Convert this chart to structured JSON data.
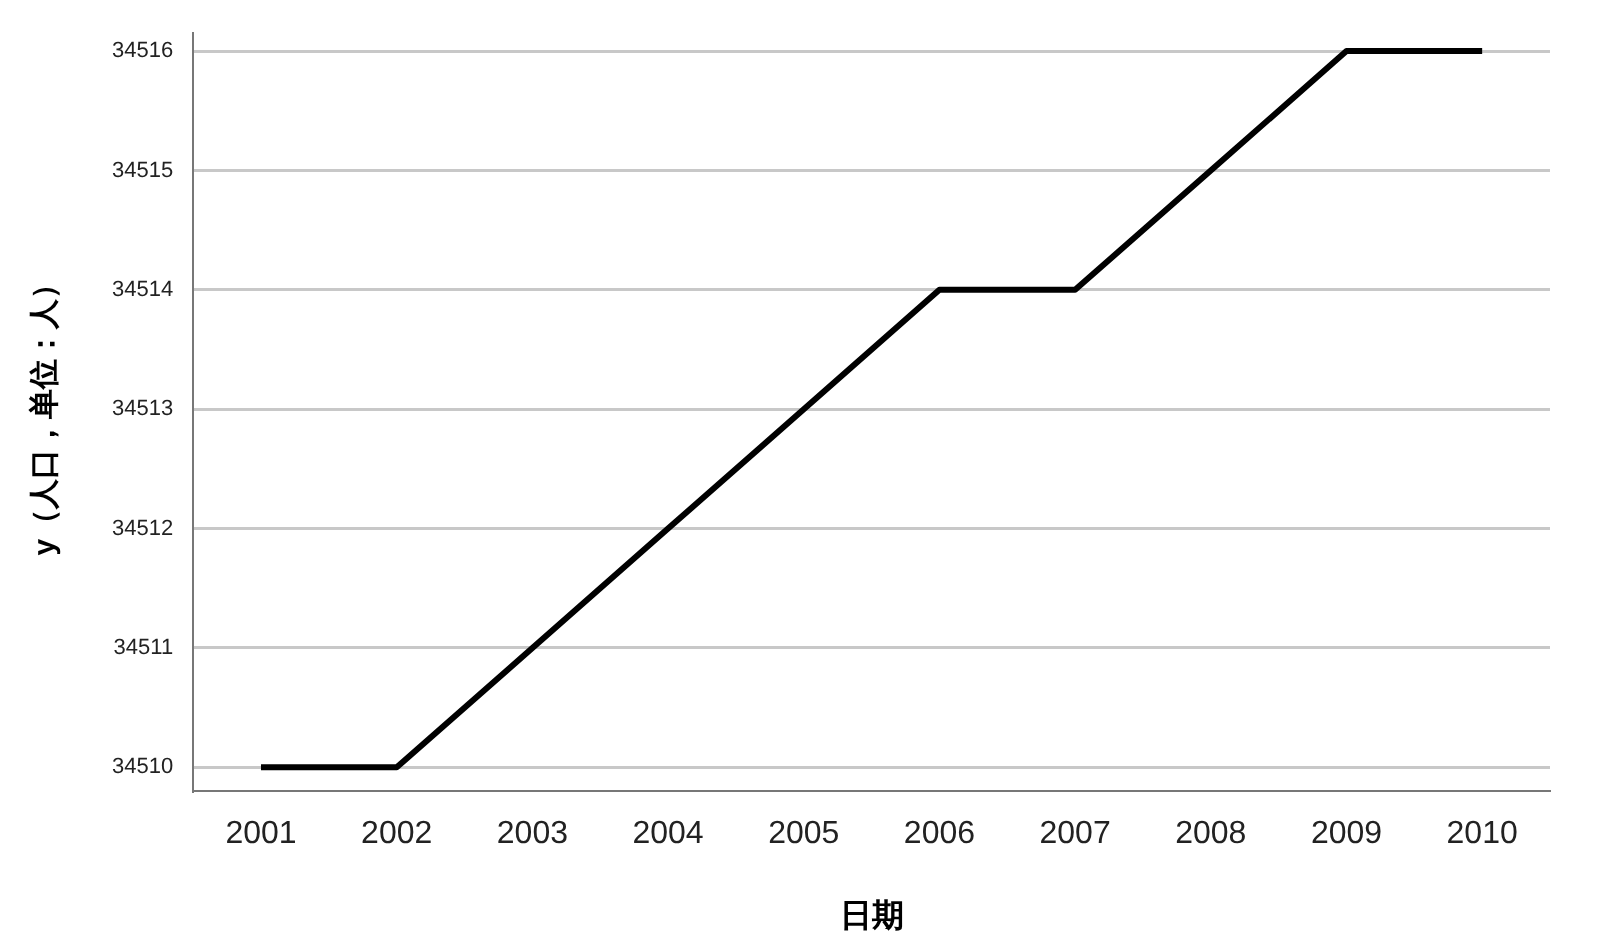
{
  "chart_data": {
    "type": "line",
    "xlabel": "日期",
    "ylabel": "y（人口，单位：人）",
    "categories": [
      "2001",
      "2002",
      "2003",
      "2004",
      "2005",
      "2006",
      "2007",
      "2008",
      "2009",
      "2010"
    ],
    "series": [
      {
        "color": "#000000",
        "values": [
          34510,
          34510,
          34511,
          34512,
          34513,
          34514,
          34514,
          34515,
          34516,
          34516
        ]
      }
    ],
    "ylim": [
      34509.8,
      34516.15
    ],
    "yticks": [
      34510,
      34511,
      34512,
      34513,
      34514,
      34515,
      34516
    ],
    "grid": "y",
    "legend": false,
    "marker": "none",
    "line_style": "solid"
  }
}
